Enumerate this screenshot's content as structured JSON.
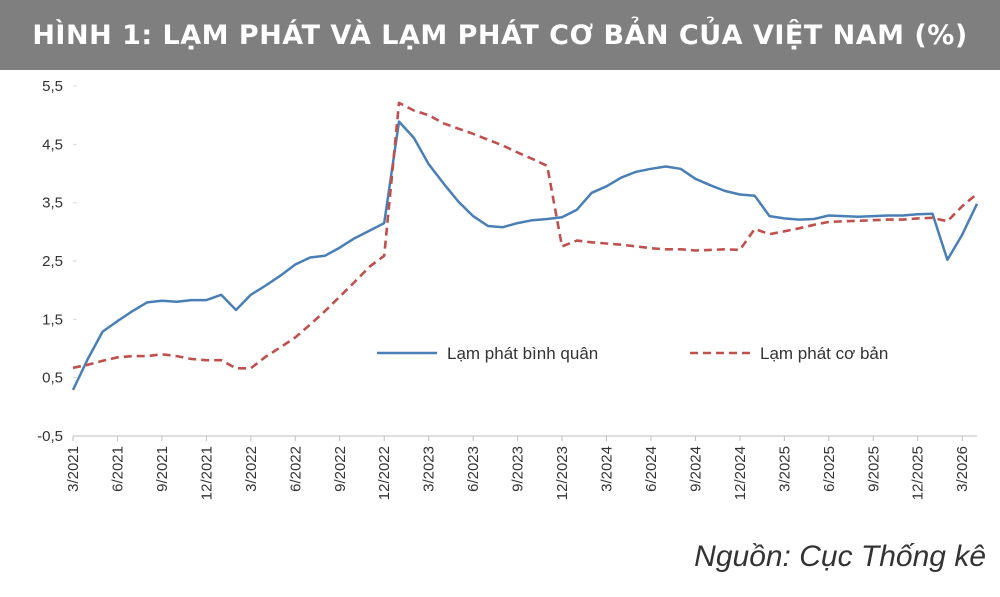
{
  "title": "HÌNH 1: LẠM PHÁT VÀ LẠM PHÁT CƠ BẢN CỦA VIỆT NAM (%)",
  "source": "Nguồn: Cục Thống kê",
  "colors": {
    "title_bg": "#7f7f7f",
    "series_1": "#4a7fb5",
    "series_2": "#c0504d"
  },
  "chart_data": {
    "type": "line",
    "ylim": [
      -0.5,
      5.5
    ],
    "y_ticks": [
      "5,5",
      "4,5",
      "3,5",
      "2,5",
      "1,5",
      "0,5",
      "-0,5"
    ],
    "x_ticks": [
      "3/2021",
      "6/2021",
      "9/2021",
      "12/2021",
      "3/2022",
      "6/2022",
      "9/2022",
      "12/2022",
      "3/2023",
      "6/2023",
      "9/2023",
      "12/2023",
      "3/2024",
      "6/2024",
      "9/2024",
      "12/2024",
      "3/2025",
      "6/2025",
      "9/2025",
      "12/2025",
      "3/2026"
    ],
    "legend_position": "center-right",
    "series": [
      {
        "name": "Lạm phát bình quân",
        "style": "solid",
        "values": [
          0.29,
          0.82,
          1.29,
          1.47,
          1.64,
          1.79,
          1.82,
          1.8,
          1.83,
          1.83,
          1.92,
          1.66,
          1.92,
          2.08,
          2.25,
          2.44,
          2.56,
          2.59,
          2.73,
          2.89,
          3.02,
          3.15,
          4.89,
          4.61,
          4.16,
          3.83,
          3.52,
          3.27,
          3.1,
          3.08,
          3.15,
          3.2,
          3.22,
          3.25,
          3.38,
          3.67,
          3.78,
          3.93,
          4.03,
          4.08,
          4.12,
          4.08,
          3.91,
          3.8,
          3.7,
          3.64,
          3.62,
          3.27,
          3.23,
          3.21,
          3.22,
          3.28,
          3.27,
          3.26,
          3.27,
          3.28,
          3.28,
          3.3,
          3.31,
          2.52,
          2.95,
          3.48
        ]
      },
      {
        "name": "Lạm phát cơ bản",
        "style": "dashed",
        "values": [
          0.67,
          0.72,
          0.79,
          0.85,
          0.87,
          0.87,
          0.9,
          0.87,
          0.82,
          0.8,
          0.8,
          0.66,
          0.66,
          0.86,
          1.02,
          1.19,
          1.41,
          1.64,
          1.89,
          2.14,
          2.4,
          2.59,
          5.21,
          5.08,
          5.0,
          4.86,
          4.77,
          4.68,
          4.58,
          4.48,
          4.36,
          4.25,
          4.13,
          2.75,
          2.85,
          2.82,
          2.8,
          2.78,
          2.75,
          2.72,
          2.7,
          2.7,
          2.68,
          2.69,
          2.7,
          2.69,
          3.05,
          2.96,
          3.01,
          3.06,
          3.12,
          3.17,
          3.18,
          3.19,
          3.2,
          3.21,
          3.21,
          3.23,
          3.24,
          3.18,
          3.44,
          3.65
        ]
      }
    ]
  }
}
